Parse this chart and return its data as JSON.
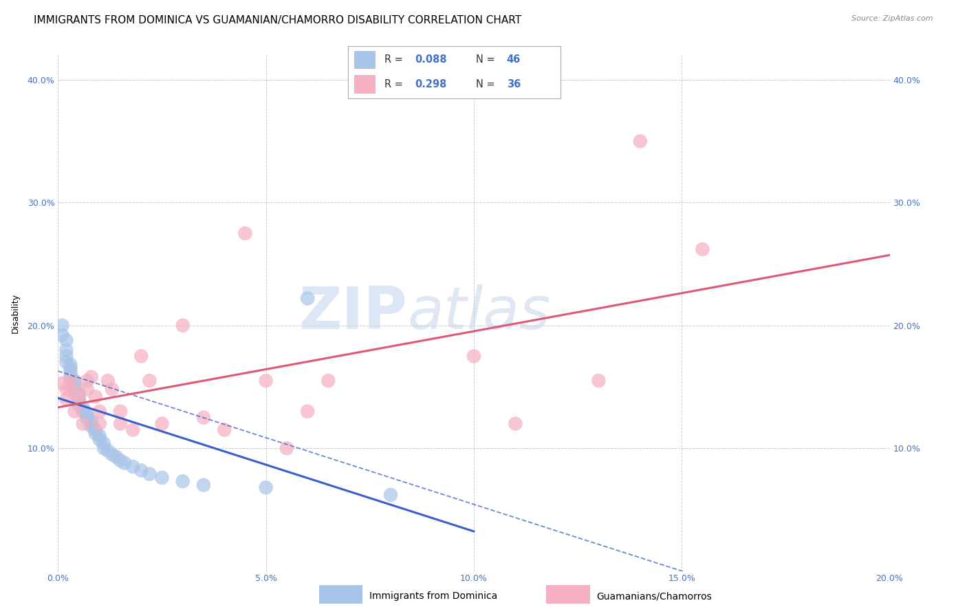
{
  "title": "IMMIGRANTS FROM DOMINICA VS GUAMANIAN/CHAMORRO DISABILITY CORRELATION CHART",
  "source": "Source: ZipAtlas.com",
  "ylabel": "Disability",
  "xlabel_blue": "Immigrants from Dominica",
  "xlabel_pink": "Guamanians/Chamorros",
  "x_min": 0.0,
  "x_max": 0.2,
  "y_min": 0.0,
  "y_max": 0.42,
  "r_blue": "0.088",
  "n_blue": "46",
  "r_pink": "0.298",
  "n_pink": "36",
  "blue_color": "#a8c4e8",
  "pink_color": "#f4afc0",
  "line_blue": "#3a5fcc",
  "line_pink": "#e05878",
  "blue_scatter": [
    [
      0.001,
      0.2
    ],
    [
      0.001,
      0.192
    ],
    [
      0.002,
      0.188
    ],
    [
      0.002,
      0.18
    ],
    [
      0.002,
      0.175
    ],
    [
      0.002,
      0.17
    ],
    [
      0.003,
      0.168
    ],
    [
      0.003,
      0.165
    ],
    [
      0.003,
      0.162
    ],
    [
      0.003,
      0.158
    ],
    [
      0.004,
      0.155
    ],
    [
      0.004,
      0.152
    ],
    [
      0.004,
      0.148
    ],
    [
      0.004,
      0.145
    ],
    [
      0.005,
      0.143
    ],
    [
      0.005,
      0.14
    ],
    [
      0.005,
      0.138
    ],
    [
      0.005,
      0.135
    ],
    [
      0.006,
      0.133
    ],
    [
      0.006,
      0.13
    ],
    [
      0.007,
      0.128
    ],
    [
      0.007,
      0.126
    ],
    [
      0.007,
      0.124
    ],
    [
      0.008,
      0.122
    ],
    [
      0.008,
      0.12
    ],
    [
      0.008,
      0.118
    ],
    [
      0.009,
      0.115
    ],
    [
      0.009,
      0.112
    ],
    [
      0.01,
      0.11
    ],
    [
      0.01,
      0.107
    ],
    [
      0.011,
      0.104
    ],
    [
      0.011,
      0.1
    ],
    [
      0.012,
      0.098
    ],
    [
      0.013,
      0.095
    ],
    [
      0.014,
      0.093
    ],
    [
      0.015,
      0.09
    ],
    [
      0.016,
      0.088
    ],
    [
      0.018,
      0.085
    ],
    [
      0.02,
      0.082
    ],
    [
      0.022,
      0.079
    ],
    [
      0.025,
      0.076
    ],
    [
      0.03,
      0.073
    ],
    [
      0.035,
      0.07
    ],
    [
      0.05,
      0.068
    ],
    [
      0.06,
      0.222
    ],
    [
      0.08,
      0.062
    ]
  ],
  "pink_scatter": [
    [
      0.001,
      0.153
    ],
    [
      0.002,
      0.148
    ],
    [
      0.002,
      0.14
    ],
    [
      0.003,
      0.155
    ],
    [
      0.003,
      0.148
    ],
    [
      0.004,
      0.13
    ],
    [
      0.005,
      0.145
    ],
    [
      0.005,
      0.138
    ],
    [
      0.006,
      0.12
    ],
    [
      0.007,
      0.155
    ],
    [
      0.007,
      0.148
    ],
    [
      0.008,
      0.158
    ],
    [
      0.009,
      0.142
    ],
    [
      0.01,
      0.13
    ],
    [
      0.01,
      0.12
    ],
    [
      0.012,
      0.155
    ],
    [
      0.013,
      0.148
    ],
    [
      0.015,
      0.13
    ],
    [
      0.015,
      0.12
    ],
    [
      0.018,
      0.115
    ],
    [
      0.02,
      0.175
    ],
    [
      0.022,
      0.155
    ],
    [
      0.025,
      0.12
    ],
    [
      0.03,
      0.2
    ],
    [
      0.035,
      0.125
    ],
    [
      0.04,
      0.115
    ],
    [
      0.045,
      0.275
    ],
    [
      0.05,
      0.155
    ],
    [
      0.055,
      0.1
    ],
    [
      0.06,
      0.13
    ],
    [
      0.065,
      0.155
    ],
    [
      0.1,
      0.175
    ],
    [
      0.11,
      0.12
    ],
    [
      0.13,
      0.155
    ],
    [
      0.14,
      0.35
    ],
    [
      0.155,
      0.262
    ]
  ],
  "watermark_zip": "ZIP",
  "watermark_atlas": "atlas",
  "xtick_labels": [
    "0.0%",
    "5.0%",
    "10.0%",
    "15.0%",
    "20.0%"
  ],
  "xtick_values": [
    0.0,
    0.05,
    0.1,
    0.15,
    0.2
  ],
  "ytick_labels": [
    "10.0%",
    "20.0%",
    "30.0%",
    "40.0%"
  ],
  "ytick_values": [
    0.1,
    0.2,
    0.3,
    0.4
  ],
  "grid_color": "#cccccc",
  "background_color": "#ffffff",
  "title_fontsize": 11,
  "axis_label_fontsize": 9,
  "tick_fontsize": 9,
  "tick_color": "#4472c4",
  "legend_text_color": "#333333",
  "legend_val_color": "#4472c4"
}
